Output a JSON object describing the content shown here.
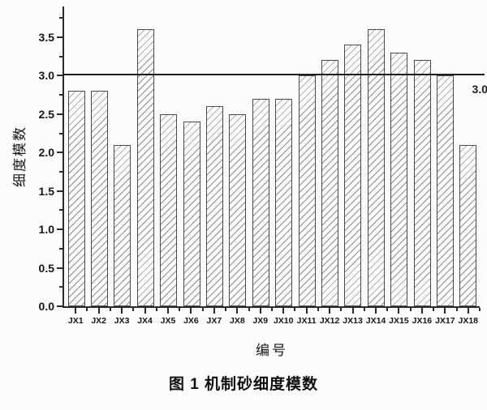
{
  "figure": {
    "caption": "图 1  机制砂细度模数"
  },
  "chart_data": {
    "type": "bar",
    "title": "",
    "xlabel": "编号",
    "ylabel": "细度模数",
    "categories": [
      "JX1",
      "JX2",
      "JX3",
      "JX4",
      "JX5",
      "JX6",
      "JX7",
      "JX8",
      "JX9",
      "JX10",
      "JX11",
      "JX12",
      "JX13",
      "JX14",
      "JX15",
      "JX16",
      "JX17",
      "JX18"
    ],
    "values": [
      2.8,
      2.8,
      2.1,
      3.6,
      2.5,
      2.4,
      2.6,
      2.5,
      2.7,
      2.7,
      3.0,
      3.2,
      3.4,
      3.6,
      3.3,
      3.2,
      3.0,
      2.1
    ],
    "ylim": [
      0,
      3.9
    ],
    "yticks": [
      0,
      0.5,
      1,
      1.5,
      2,
      2.5,
      3,
      3.5
    ],
    "ytick_labels": [
      "0.0",
      "0.5",
      "1.0",
      "1.5",
      "2.0",
      "2.5",
      "3.0",
      "3.5"
    ],
    "yticks_minor": [
      0.25,
      0.75,
      1.25,
      1.75,
      2.25,
      2.75,
      3.25,
      3.75
    ],
    "grid": false,
    "legend": null,
    "reference_line": {
      "value": 3.0,
      "label": "3.0"
    },
    "bar_style": {
      "fill": "#ffffff",
      "hatch": "/",
      "edge_color": "#4a4a4a",
      "hatch_color": "#8c8c8c"
    },
    "axis_color": "#2b2b2b"
  }
}
